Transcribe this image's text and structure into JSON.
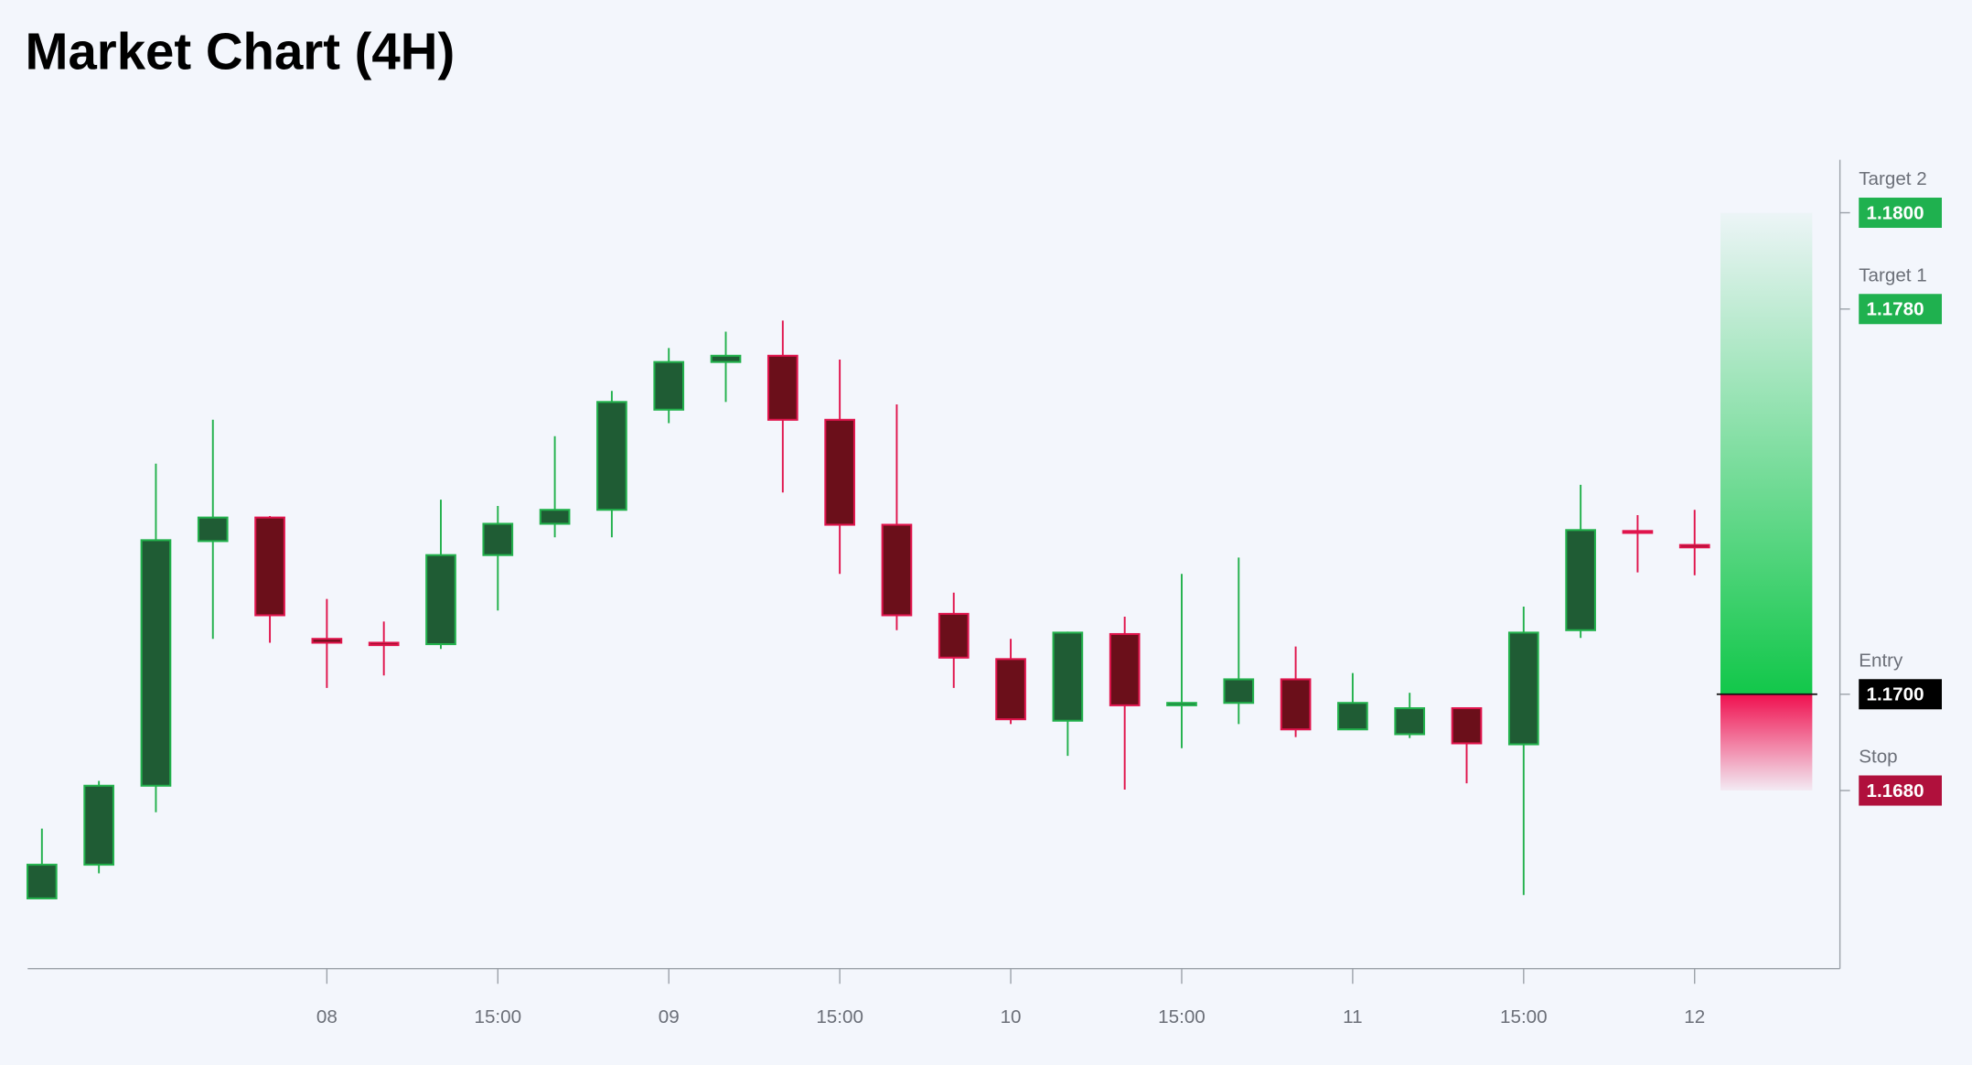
{
  "chart_data": {
    "type": "candlestick",
    "title": "Market Chart (4H)",
    "xlim": [
      -0.25,
      31.55
    ],
    "xticks": [
      {
        "value": 5,
        "label": "08"
      },
      {
        "value": 8,
        "label": "15:00"
      },
      {
        "value": 11,
        "label": "09"
      },
      {
        "value": 14,
        "label": "15:00"
      },
      {
        "value": 17,
        "label": "10"
      },
      {
        "value": 20,
        "label": "15:00"
      },
      {
        "value": 23,
        "label": "11"
      },
      {
        "value": 26,
        "label": "15:00"
      },
      {
        "value": 29,
        "label": "12"
      }
    ],
    "ylim": [
      1.1643,
      1.1811
    ],
    "up_color": "#22b14c",
    "up_fill": "#1f5c34",
    "down_color": "#e0144c",
    "down_fill": "#6b0f1a",
    "open": [
      1.16576,
      1.16646,
      1.1681,
      1.17318,
      1.17367,
      1.17115,
      1.17107,
      1.17104,
      1.17289,
      1.17354,
      1.17383,
      1.17591,
      1.1769,
      1.17703,
      1.1757,
      1.17352,
      1.17167,
      1.17073,
      1.16945,
      1.17125,
      1.16977,
      1.16982,
      1.17031,
      1.16927,
      1.16917,
      1.16971,
      1.16896,
      1.17133,
      1.17339,
      1.1731
    ],
    "high": [
      1.16721,
      1.1682,
      1.17479,
      1.1757,
      1.1737,
      1.17198,
      1.17151,
      1.17404,
      1.17391,
      1.17536,
      1.1763,
      1.17719,
      1.17753,
      1.17776,
      1.17695,
      1.17602,
      1.17211,
      1.17115,
      1.1713,
      1.17161,
      1.1725,
      1.17284,
      1.17099,
      1.17044,
      1.17003,
      1.16972,
      1.17182,
      1.17435,
      1.17372,
      1.17383
    ],
    "low": [
      1.16576,
      1.16628,
      1.16755,
      1.17115,
      1.17107,
      1.17013,
      1.17039,
      1.17094,
      1.17174,
      1.17326,
      1.17326,
      1.17563,
      1.17607,
      1.17419,
      1.1725,
      1.17133,
      1.17013,
      1.16938,
      1.16872,
      1.16802,
      1.16888,
      1.16938,
      1.16911,
      1.16927,
      1.16909,
      1.16815,
      1.16583,
      1.17117,
      1.17253,
      1.17247
    ],
    "close": [
      1.16646,
      1.1681,
      1.1732,
      1.17367,
      1.17164,
      1.17107,
      1.17102,
      1.17289,
      1.17354,
      1.17383,
      1.17607,
      1.1769,
      1.17703,
      1.1757,
      1.17352,
      1.17164,
      1.17076,
      1.16948,
      1.17128,
      1.16977,
      1.16982,
      1.17031,
      1.16927,
      1.16982,
      1.16971,
      1.16898,
      1.17128,
      1.17341,
      1.17336,
      1.17305
    ],
    "levels": [
      {
        "name": "Target 2",
        "value": 1.18,
        "value_label": "1.1800",
        "color": "#1fb14f"
      },
      {
        "name": "Target 1",
        "value": 1.178,
        "value_label": "1.1780",
        "color": "#1fb14f"
      },
      {
        "name": "Entry",
        "value": 1.17,
        "value_label": "1.1700",
        "color": "#000000"
      },
      {
        "name": "Stop",
        "value": 1.168,
        "value_label": "1.1680",
        "color": "#b0103c"
      }
    ]
  }
}
